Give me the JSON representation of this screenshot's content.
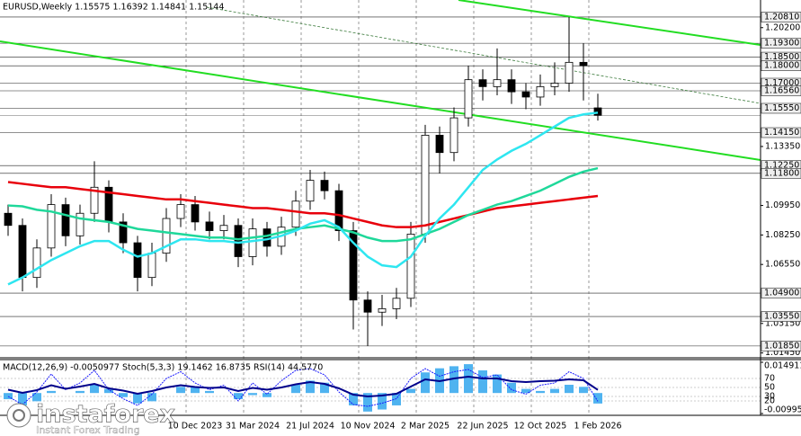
{
  "chart_data": {
    "type": "candlestick",
    "title": "EURUSD,Weekly  1.15575 1.16392 1.14841 1.15144",
    "categories": [
      null,
      null,
      null,
      null,
      null,
      null,
      null,
      null,
      null,
      null,
      null,
      null,
      null,
      "10 Dec 2023",
      null,
      null,
      null,
      "31 Mar 2024",
      null,
      null,
      null,
      "21 Jul 2024",
      null,
      null,
      null,
      "10 Nov 2024",
      null,
      null,
      null,
      "2 Mar 2025",
      null,
      null,
      null,
      "22 Jun 2025",
      null,
      null,
      null,
      "12 Oct 2025",
      null,
      null,
      null,
      "1 Feb 2026"
    ],
    "candles": [
      [
        1.095,
        1.1,
        1.082,
        1.088
      ],
      [
        1.088,
        1.092,
        1.05,
        1.058
      ],
      [
        1.058,
        1.08,
        1.052,
        1.075
      ],
      [
        1.075,
        1.106,
        1.07,
        1.1
      ],
      [
        1.1,
        1.104,
        1.076,
        1.082
      ],
      [
        1.082,
        1.1,
        1.077,
        1.095
      ],
      [
        1.095,
        1.125,
        1.09,
        1.11
      ],
      [
        1.11,
        1.114,
        1.084,
        1.09
      ],
      [
        1.09,
        1.095,
        1.072,
        1.078
      ],
      [
        1.078,
        1.082,
        1.05,
        1.058
      ],
      [
        1.058,
        1.078,
        1.053,
        1.072
      ],
      [
        1.072,
        1.098,
        1.067,
        1.092
      ],
      [
        1.092,
        1.106,
        1.087,
        1.1
      ],
      [
        1.1,
        1.105,
        1.085,
        1.09
      ],
      [
        1.09,
        1.096,
        1.08,
        1.085
      ],
      [
        1.085,
        1.094,
        1.08,
        1.088
      ],
      [
        1.088,
        1.092,
        1.064,
        1.07
      ],
      [
        1.07,
        1.092,
        1.065,
        1.086
      ],
      [
        1.086,
        1.09,
        1.07,
        1.076
      ],
      [
        1.076,
        1.093,
        1.071,
        1.087
      ],
      [
        1.087,
        1.108,
        1.082,
        1.102
      ],
      [
        1.102,
        1.12,
        1.097,
        1.114
      ],
      [
        1.114,
        1.119,
        1.103,
        1.108
      ],
      [
        1.108,
        1.112,
        1.079,
        1.085
      ],
      [
        1.085,
        1.09,
        1.028,
        1.045
      ],
      [
        1.045,
        1.05,
        1.0185,
        1.038
      ],
      [
        1.038,
        1.048,
        1.03,
        1.04
      ],
      [
        1.04,
        1.052,
        1.034,
        1.046
      ],
      [
        1.046,
        1.09,
        1.041,
        1.083
      ],
      [
        1.083,
        1.146,
        1.078,
        1.14
      ],
      [
        1.14,
        1.145,
        1.118,
        1.13
      ],
      [
        1.13,
        1.156,
        1.125,
        1.15
      ],
      [
        1.15,
        1.18,
        1.145,
        1.172
      ],
      [
        1.172,
        1.178,
        1.16,
        1.168
      ],
      [
        1.168,
        1.19,
        1.163,
        1.172
      ],
      [
        1.172,
        1.178,
        1.158,
        1.165
      ],
      [
        1.165,
        1.17,
        1.155,
        1.162
      ],
      [
        1.162,
        1.175,
        1.157,
        1.168
      ],
      [
        1.168,
        1.182,
        1.163,
        1.17
      ],
      [
        1.17,
        1.2081,
        1.165,
        1.182
      ],
      [
        1.182,
        1.193,
        1.16,
        1.18
      ],
      [
        1.15575,
        1.16392,
        1.14841,
        1.15144
      ]
    ],
    "lines": [
      {
        "color": "#e8000b",
        "values": [
          1.113,
          1.112,
          1.111,
          1.11,
          1.11,
          1.109,
          1.108,
          1.107,
          1.106,
          1.105,
          1.104,
          1.103,
          1.103,
          1.102,
          1.101,
          1.1,
          1.099,
          1.098,
          1.098,
          1.097,
          1.096,
          1.095,
          1.095,
          1.094,
          1.092,
          1.09,
          1.088,
          1.087,
          1.087,
          1.088,
          1.09,
          1.092,
          1.094,
          1.096,
          1.098,
          1.099,
          1.1,
          1.101,
          1.102,
          1.103,
          1.104,
          1.105
        ]
      },
      {
        "color": "#1fd89a",
        "values": [
          1.0995,
          1.099,
          1.097,
          1.096,
          1.094,
          1.092,
          1.091,
          1.09,
          1.088,
          1.086,
          1.085,
          1.084,
          1.083,
          1.082,
          1.081,
          1.081,
          1.08,
          1.081,
          1.082,
          1.084,
          1.086,
          1.087,
          1.088,
          1.086,
          1.084,
          1.081,
          1.079,
          1.079,
          1.08,
          1.083,
          1.086,
          1.09,
          1.094,
          1.097,
          1.1,
          1.102,
          1.105,
          1.108,
          1.112,
          1.116,
          1.119,
          1.121
        ]
      },
      {
        "color": "#2ee6f0",
        "values": [
          1.054,
          1.058,
          1.063,
          1.068,
          1.072,
          1.076,
          1.079,
          1.079,
          1.074,
          1.07,
          1.072,
          1.076,
          1.08,
          1.08,
          1.079,
          1.079,
          1.078,
          1.079,
          1.08,
          1.082,
          1.085,
          1.089,
          1.091,
          1.087,
          1.078,
          1.07,
          1.065,
          1.064,
          1.07,
          1.082,
          1.092,
          1.1,
          1.11,
          1.12,
          1.126,
          1.131,
          1.135,
          1.14,
          1.145,
          1.15,
          1.152,
          1.153
        ]
      }
    ],
    "current_price": 1.15144,
    "ylim": [
      1.0117,
      1.2169
    ],
    "levels": [
      {
        "value": 1.2081,
        "label": "1.20810"
      },
      {
        "value": 1.193,
        "label": "1.19300"
      },
      {
        "value": 1.185,
        "label": "1.18500"
      },
      {
        "value": 1.18,
        "label": "1.18000"
      },
      {
        "value": 1.17,
        "label": "1.17000"
      },
      {
        "value": 1.1656,
        "label": "1.16560"
      },
      {
        "value": 1.1555,
        "label": "1.15550"
      },
      {
        "value": 1.1415,
        "label": "1.14150"
      },
      {
        "value": 1.1225,
        "label": "1.12250"
      },
      {
        "value": 1.118,
        "label": "1.11800"
      },
      {
        "value": 1.049,
        "label": "1.04900"
      },
      {
        "value": 1.0355,
        "label": "1.03550"
      },
      {
        "value": 1.0185,
        "label": "1.01850"
      }
    ],
    "yticks": [
      {
        "value": 1.202,
        "label": "1.20200"
      },
      {
        "value": 1.1335,
        "label": "1.13350"
      },
      {
        "value": 1.0995,
        "label": "1.09950"
      },
      {
        "value": 1.0825,
        "label": "1.08250"
      },
      {
        "value": 1.0655,
        "label": "1.06550"
      },
      {
        "value": 1.0315,
        "label": "1.03150"
      },
      {
        "value": 1.0145,
        "label": "1.01450"
      }
    ],
    "indicator": {
      "title": "MACD(12,26,9) -0.0050977 Stoch(5,3,3) 19.1462 16.8735 RSI(14) 44.5770",
      "macd": [
        -0.003,
        -0.006,
        -0.004,
        0.001,
        0.0,
        0.001,
        0.004,
        0.002,
        -0.002,
        -0.005,
        -0.004,
        0.0,
        0.003,
        0.003,
        0.001,
        0.0,
        -0.003,
        -0.001,
        -0.002,
        0.0,
        0.004,
        0.006,
        0.005,
        0.0,
        -0.006,
        -0.009,
        -0.008,
        -0.006,
        0.002,
        0.01,
        0.012,
        0.013,
        0.014,
        0.011,
        0.009,
        0.005,
        0.002,
        0.001,
        0.002,
        0.004,
        0.003,
        -0.0050977
      ],
      "stoch": [
        30,
        12,
        40,
        80,
        45,
        60,
        88,
        45,
        25,
        10,
        35,
        70,
        85,
        60,
        45,
        55,
        20,
        60,
        35,
        65,
        88,
        92,
        78,
        40,
        12,
        8,
        15,
        25,
        70,
        92,
        75,
        85,
        90,
        72,
        78,
        45,
        35,
        55,
        60,
        85,
        70,
        19.1462
      ],
      "rsi": [
        45,
        38,
        44,
        55,
        47,
        52,
        58,
        48,
        43,
        36,
        42,
        50,
        55,
        51,
        49,
        50,
        42,
        49,
        45,
        50,
        57,
        62,
        58,
        48,
        34,
        30,
        32,
        36,
        52,
        68,
        64,
        70,
        74,
        70,
        70,
        64,
        62,
        64,
        65,
        68,
        66,
        44.577
      ],
      "ylim": [
        -0.009951,
        0.0149116
      ],
      "yticks": [
        0.0149116,
        -0.009951
      ],
      "osc_ylim": [
        0,
        100
      ],
      "osc_ticks": [
        70,
        50,
        30,
        20
      ]
    },
    "logo": {
      "name": "instaforex",
      "tagline": "Instant Forex Trading"
    }
  }
}
